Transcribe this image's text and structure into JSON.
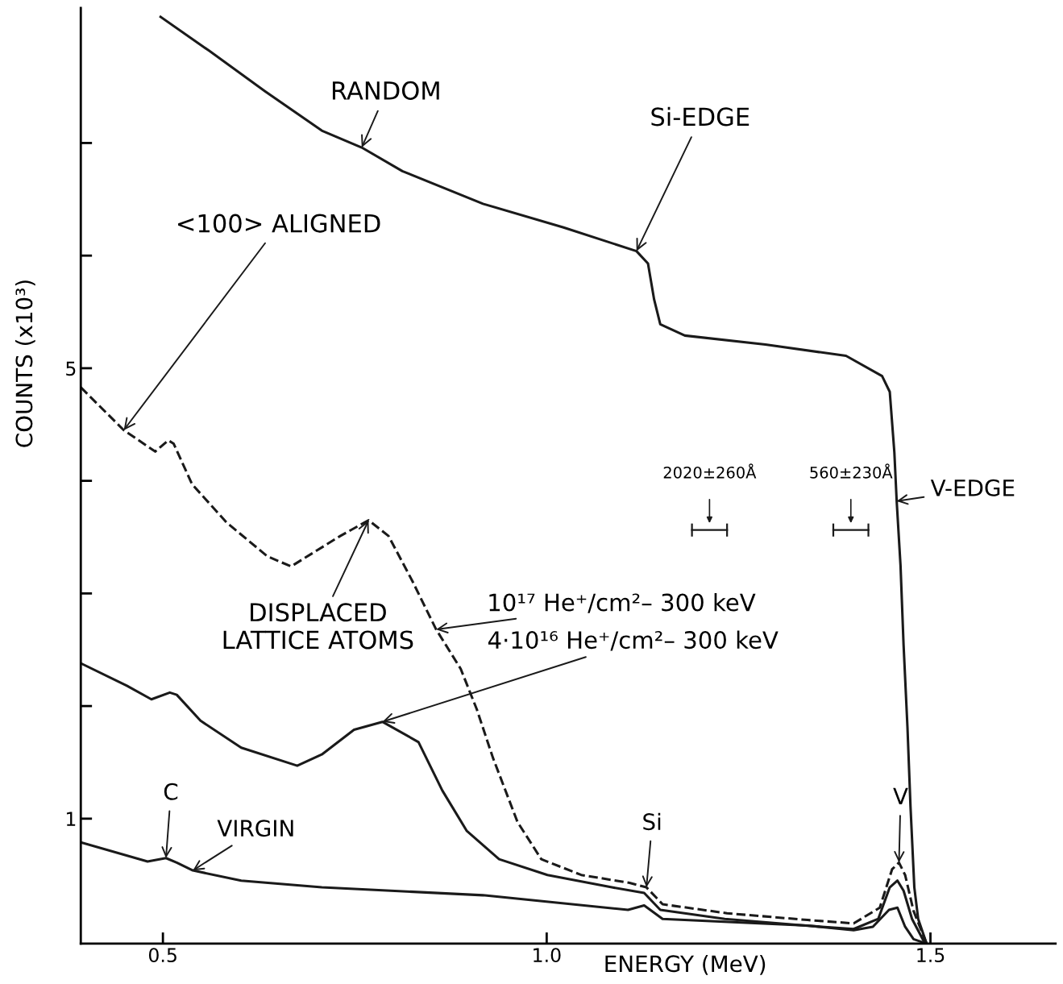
{
  "chart_data": {
    "type": "line",
    "xlabel": "ENERGY (MeV)",
    "ylabel": "COUNTS (x10³)",
    "xlim": [
      0.393,
      1.663
    ],
    "ylim": [
      -0.11,
      8.2
    ],
    "xticks": [
      0.5,
      {
        "value": 1.0,
        "label": "1.0"
      },
      1.5
    ],
    "yticks": [
      {
        "value": 1,
        "label": "1"
      },
      {
        "value": 2,
        "label": null
      },
      {
        "value": 3,
        "label": null
      },
      {
        "value": 4,
        "label": null
      },
      {
        "value": 5,
        "label": "5"
      },
      {
        "value": 6,
        "label": null
      },
      {
        "value": 7,
        "label": null
      }
    ],
    "grid": false,
    "legend": false,
    "marker": "none",
    "series": [
      {
        "color": "#1a1a1a",
        "line_style": "solid",
        "x": [
          0.497,
          0.56,
          0.633,
          0.707,
          0.759,
          0.812,
          0.917,
          1.022,
          1.117,
          1.132,
          1.14,
          1.148,
          1.18,
          1.285,
          1.39,
          1.437,
          1.447,
          1.453,
          1.456,
          1.461,
          1.465,
          1.47,
          1.474,
          1.479,
          1.484,
          1.495
        ],
        "values": [
          8.12,
          7.82,
          7.46,
          7.11,
          6.96,
          6.75,
          6.46,
          6.25,
          6.04,
          5.93,
          5.61,
          5.39,
          5.29,
          5.21,
          5.11,
          4.93,
          4.79,
          4.25,
          3.82,
          3.25,
          2.54,
          1.82,
          1.11,
          0.39,
          0.11,
          -0.11
        ]
      },
      {
        "color": "#1a1a1a",
        "line_style": "dashed",
        "x": [
          0.393,
          0.449,
          0.49,
          0.507,
          0.514,
          0.538,
          0.583,
          0.636,
          0.667,
          0.731,
          0.768,
          0.794,
          0.825,
          0.856,
          0.888,
          0.909,
          0.93,
          0.962,
          0.993,
          1.045,
          1.108,
          1.13,
          1.151,
          1.235,
          1.34,
          1.4,
          1.434,
          1.45,
          1.459,
          1.467,
          1.478,
          1.495
        ],
        "values": [
          4.83,
          4.45,
          4.26,
          4.36,
          4.33,
          3.97,
          3.63,
          3.33,
          3.24,
          3.51,
          3.65,
          3.51,
          3.11,
          2.68,
          2.33,
          1.97,
          1.54,
          0.97,
          0.64,
          0.5,
          0.43,
          0.39,
          0.24,
          0.16,
          0.1,
          0.07,
          0.21,
          0.55,
          0.61,
          0.5,
          0.18,
          -0.11
        ]
      },
      {
        "color": "#1a1a1a",
        "line_style": "solid",
        "x": [
          0.393,
          0.453,
          0.485,
          0.509,
          0.518,
          0.549,
          0.602,
          0.675,
          0.707,
          0.749,
          0.786,
          0.833,
          0.864,
          0.896,
          0.938,
          1.001,
          1.085,
          1.127,
          1.148,
          1.232,
          1.337,
          1.4,
          1.432,
          1.447,
          1.457,
          1.465,
          1.476,
          1.493
        ],
        "values": [
          2.38,
          2.18,
          2.06,
          2.12,
          2.1,
          1.87,
          1.63,
          1.47,
          1.57,
          1.79,
          1.86,
          1.68,
          1.25,
          0.89,
          0.64,
          0.5,
          0.39,
          0.34,
          0.19,
          0.11,
          0.05,
          0.02,
          0.11,
          0.39,
          0.45,
          0.36,
          0.11,
          -0.11
        ]
      },
      {
        "color": "#1a1a1a",
        "line_style": "solid",
        "x": [
          0.393,
          0.48,
          0.504,
          0.518,
          0.539,
          0.602,
          0.707,
          0.917,
          1.106,
          1.127,
          1.151,
          1.34,
          1.4,
          1.425,
          1.446,
          1.457,
          1.467,
          1.478,
          1.495
        ],
        "values": [
          0.79,
          0.62,
          0.65,
          0.61,
          0.54,
          0.45,
          0.39,
          0.32,
          0.19,
          0.23,
          0.11,
          0.05,
          0.01,
          0.04,
          0.19,
          0.21,
          0.04,
          -0.07,
          -0.11
        ]
      }
    ],
    "annotations": [
      {
        "text": "RANDOM",
        "x": 0.759,
        "y": 6.96
      },
      {
        "text": "Si-EDGE",
        "x": 1.117,
        "y": 6.04
      },
      {
        "text": "<100> ALIGNED",
        "x": 0.449,
        "y": 4.45
      },
      {
        "text": "DISPLACED\nLATTICE ATOMS",
        "x": 0.768,
        "y": 3.65
      },
      {
        "text": "10¹⁷ He⁺/cm²– 300 keV",
        "x": 0.856,
        "y": 2.68
      },
      {
        "text": "4·10¹⁶ He⁺/cm²– 300 keV",
        "x": 0.786,
        "y": 1.86
      },
      "2020±260Å",
      "560±230Å",
      {
        "text": "V-EDGE",
        "x": 1.456,
        "y": 3.82
      },
      {
        "text": "C",
        "x": 0.504,
        "y": 0.65
      },
      {
        "text": "VIRGIN",
        "x": 0.539,
        "y": 0.54
      },
      {
        "text": "Si",
        "x": 1.13,
        "y": 0.39
      },
      {
        "text": "V",
        "x": 1.459,
        "y": 0.61
      }
    ]
  }
}
